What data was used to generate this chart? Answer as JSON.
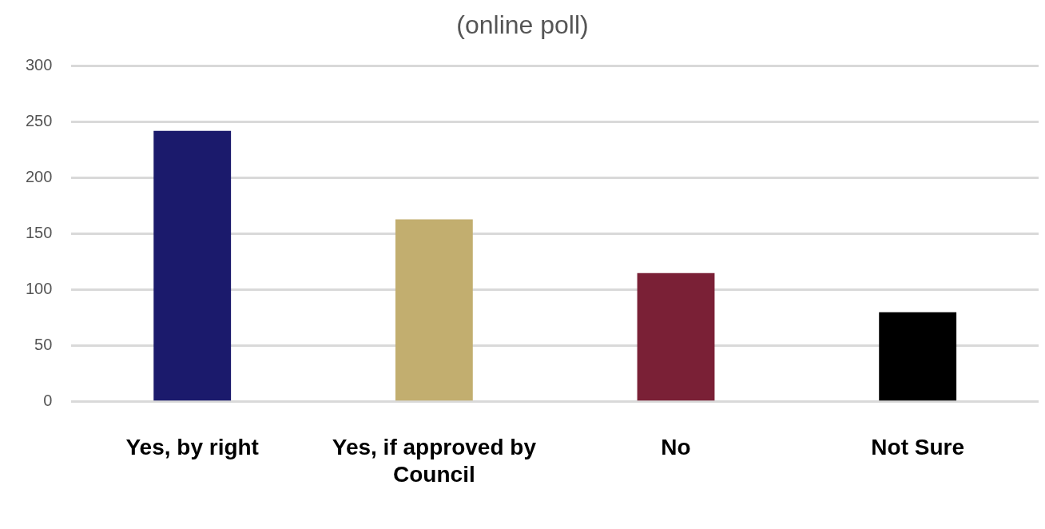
{
  "chart_data": {
    "type": "bar",
    "title": "(online poll)",
    "categories": [
      "Yes, by right",
      "Yes, if approved by Council",
      "No",
      "Not Sure"
    ],
    "values": [
      242,
      163,
      115,
      80
    ],
    "colors": [
      "#1b1a6c",
      "#c2ae6f",
      "#7a2036",
      "#000000"
    ],
    "ylim": [
      0,
      300
    ],
    "yticks": [
      0,
      50,
      100,
      150,
      200,
      250,
      300
    ],
    "grid": "y",
    "legend": false
  }
}
